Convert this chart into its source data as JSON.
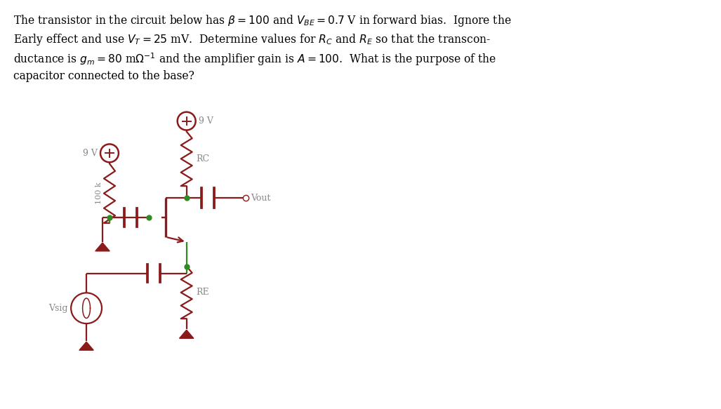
{
  "circuit_color": "#8B1A1A",
  "green_color": "#2E8B22",
  "gray_color": "#888888",
  "bg_color": "#FFFFFF",
  "fig_width": 10.27,
  "fig_height": 5.83,
  "lw": 1.6,
  "text_lines": [
    "The transistor in the circuit below has $\\beta = 100$ and $V_{BE} = 0.7$ V in forward bias.  Ignore the",
    "Early effect and use $V_T = 25$ mV.  Determine values for $R_C$ and $R_E$ so that the transcon-",
    "ductance is $g_m = 80$ m$\\Omega^{-1}$ and the amplifier gain is $A = 100$.  What is the purpose of the",
    "capacitor connected to the base?"
  ]
}
